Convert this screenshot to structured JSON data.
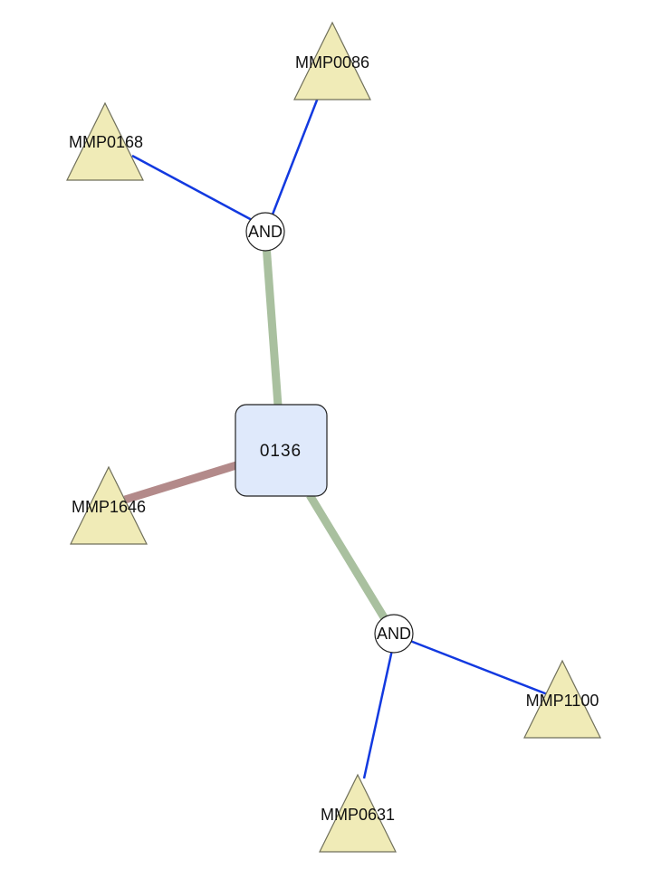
{
  "colors": {
    "gene_fill": "#f0ebb7",
    "gene_stroke": "#6f6f5a",
    "center_fill": "#dfe9fb",
    "center_stroke": "#222222",
    "and_fill": "#ffffff",
    "and_stroke": "#222222",
    "blue_edge": "#1239e0",
    "green_edge": "#a9c09f",
    "red_edge": "#b38a8a"
  },
  "center_node": {
    "label": "0136"
  },
  "and_nodes": [
    {
      "id": "and_top",
      "label": "AND"
    },
    {
      "id": "and_bottom",
      "label": "AND"
    }
  ],
  "gene_nodes": [
    {
      "id": "g0086",
      "label": "MMP0086"
    },
    {
      "id": "g0168",
      "label": "MMP0168"
    },
    {
      "id": "g1646",
      "label": "MMP1646"
    },
    {
      "id": "g1100",
      "label": "MMP1100"
    },
    {
      "id": "g0631",
      "label": "MMP0631"
    }
  ],
  "edges": [
    {
      "from": "and_top",
      "to": "g0086",
      "style": "blue"
    },
    {
      "from": "and_top",
      "to": "g0168",
      "style": "blue"
    },
    {
      "from": "center",
      "to": "and_top",
      "style": "green"
    },
    {
      "from": "center",
      "to": "g1646",
      "style": "red"
    },
    {
      "from": "center",
      "to": "and_bottom",
      "style": "green"
    },
    {
      "from": "and_bottom",
      "to": "g1100",
      "style": "blue"
    },
    {
      "from": "and_bottom",
      "to": "g0631",
      "style": "blue"
    }
  ]
}
